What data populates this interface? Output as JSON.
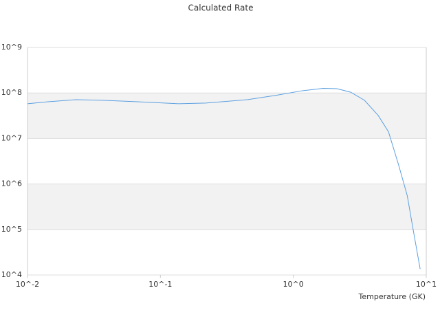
{
  "chart_data": {
    "type": "line",
    "title": "Calculated Rate",
    "x_label": "Temperature (GK)",
    "x": [
      0.01,
      0.0143,
      0.023,
      0.037,
      0.067,
      0.137,
      0.22,
      0.45,
      0.73,
      1.17,
      1.68,
      2.13,
      2.7,
      3.43,
      4.35,
      5.2,
      6.2,
      7.2,
      7.9,
      9.0
    ],
    "series": [
      {
        "color": "#5b9fe0",
        "values": [
          58000000,
          64000000,
          71000000,
          69000000,
          64000000,
          58000000,
          60000000,
          71000000,
          88000000,
          112000000,
          126000000,
          124000000,
          104000000,
          69000000,
          32000000,
          14000000,
          2600000,
          550000,
          115000,
          13500
        ]
      }
    ],
    "xlog": true,
    "ylog": true,
    "xlim": [
      0.01,
      10
    ],
    "ylim": [
      10000,
      1000000000
    ],
    "xticks": [
      {
        "value": 0.01,
        "label": "10^-2"
      },
      {
        "value": 0.1,
        "label": "10^-1"
      },
      {
        "value": 1,
        "label": "10^0"
      },
      {
        "value": 10,
        "label": "10^1"
      }
    ],
    "yticks": [
      {
        "value": 10000,
        "label": "10^4"
      },
      {
        "value": 100000,
        "label": "10^5"
      },
      {
        "value": 1000000,
        "label": "10^6"
      },
      {
        "value": 10000000,
        "label": "10^7"
      },
      {
        "value": 100000000,
        "label": "10^8"
      },
      {
        "value": 1000000000,
        "label": "10^9"
      }
    ],
    "grid": true,
    "band_color": "#f2f2f2"
  }
}
